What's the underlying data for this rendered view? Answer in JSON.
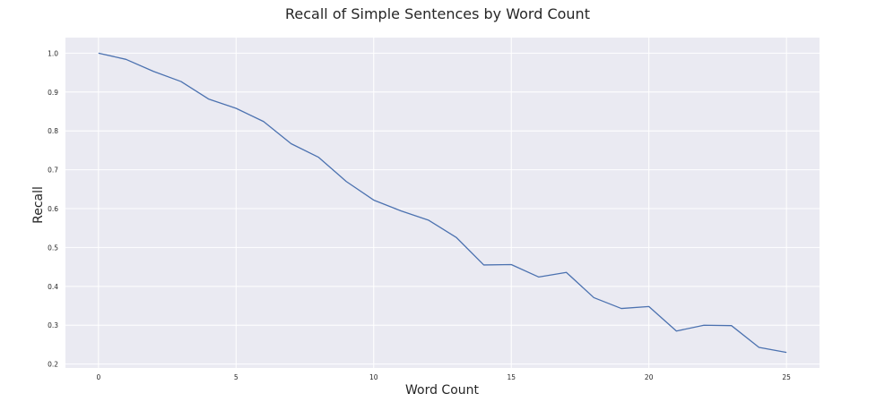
{
  "chart_data": {
    "type": "line",
    "title": "Recall of Simple Sentences by Word Count",
    "xlabel": "Word Count",
    "ylabel": "Recall",
    "xlim": [
      -1.2,
      26.2
    ],
    "ylim": [
      0.19,
      1.04
    ],
    "x_ticks": [
      0,
      5,
      10,
      15,
      20,
      25
    ],
    "y_ticks": [
      0.2,
      0.3,
      0.4,
      0.5,
      0.6,
      0.7,
      0.8,
      0.9,
      1.0
    ],
    "grid": true,
    "background_color": "#eaeaf2",
    "series": [
      {
        "color": "#4c72b0",
        "x": [
          0,
          1,
          2,
          3,
          4,
          5,
          6,
          7,
          8,
          9,
          10,
          11,
          12,
          13,
          14,
          15,
          16,
          17,
          18,
          19,
          20,
          21,
          22,
          23,
          24,
          25
        ],
        "y": [
          1.0,
          0.984,
          0.953,
          0.927,
          0.882,
          0.858,
          0.824,
          0.767,
          0.732,
          0.67,
          0.622,
          0.594,
          0.57,
          0.526,
          0.455,
          0.456,
          0.424,
          0.436,
          0.371,
          0.343,
          0.348,
          0.285,
          0.3,
          0.299,
          0.243,
          0.23
        ]
      }
    ]
  }
}
